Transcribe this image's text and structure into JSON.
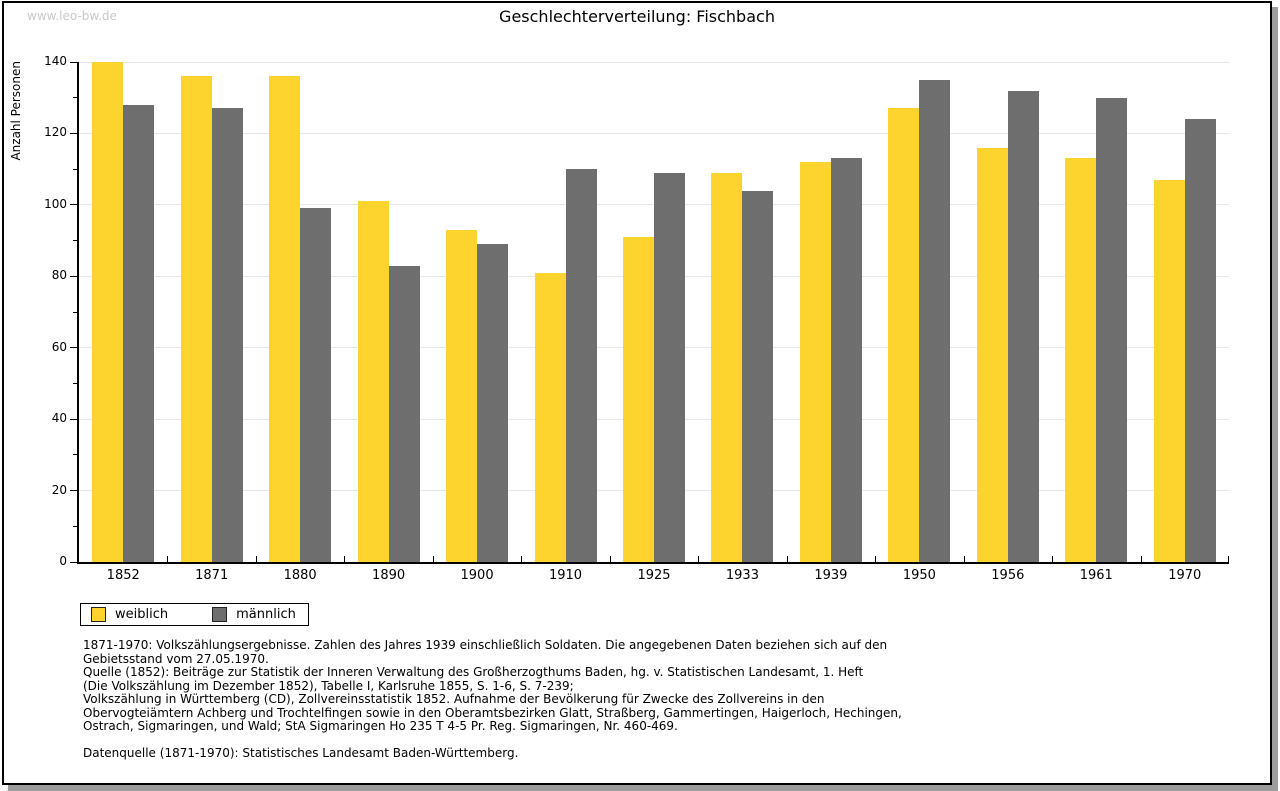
{
  "watermark": "www.leo-bw.de",
  "title": "Geschlechterverteilung: Fischbach",
  "chart_data": {
    "type": "bar",
    "title": "Geschlechterverteilung: Fischbach",
    "ylabel": "Anzahl Personen",
    "xlabel": "",
    "categories": [
      "1852",
      "1871",
      "1880",
      "1890",
      "1900",
      "1910",
      "1925",
      "1933",
      "1939",
      "1950",
      "1956",
      "1961",
      "1970"
    ],
    "series": [
      {
        "name": "weiblich",
        "color": "#fdd32d",
        "values": [
          140,
          136,
          136,
          101,
          93,
          81,
          91,
          109,
          112,
          127,
          116,
          113,
          107
        ]
      },
      {
        "name": "männlich",
        "color": "#6e6e6e",
        "values": [
          128,
          127,
          99,
          83,
          89,
          110,
          109,
          104,
          113,
          135,
          132,
          130,
          124
        ]
      }
    ],
    "ylim": [
      0,
      140
    ],
    "ytick_major": 20,
    "ytick_minor": 10,
    "grid": "horizontal-major",
    "gridline_color": "#e7e7e7",
    "legend_position": "bottom-left"
  },
  "legend": {
    "items": [
      {
        "label": "weiblich",
        "color": "#fdd32d"
      },
      {
        "label": "männlich",
        "color": "#6e6e6e"
      }
    ]
  },
  "footnote": {
    "lines": [
      "1871-1970: Volkszählungsergebnisse. Zahlen des Jahres 1939 einschließlich Soldaten. Die angegebenen Daten beziehen sich auf den",
      "Gebietsstand vom 27.05.1970.",
      "Quelle (1852): Beiträge zur Statistik der Inneren Verwaltung des Großherzogthums Baden, hg. v. Statistischen Landesamt, 1. Heft",
      "(Die Volkszählung im Dezember 1852), Tabelle I, Karlsruhe 1855, S. 1-6, S. 7-239;",
      "Volkszählung in Württemberg (CD), Zollvereinsstatistik 1852. Aufnahme der Bevölkerung für Zwecke des Zollvereins in den",
      "Obervogteiämtern Achberg und Trochtelfingen sowie in den Oberamtsbezirken Glatt, Straßberg, Gammertingen, Haigerloch, Hechingen,",
      "Ostrach, Sigmaringen, und Wald; StA Sigmaringen Ho 235 T 4-5 Pr. Reg. Sigmaringen, Nr. 460-469."
    ]
  },
  "datasource": "Datenquelle (1871-1970): Statistisches Landesamt Baden-Württemberg."
}
